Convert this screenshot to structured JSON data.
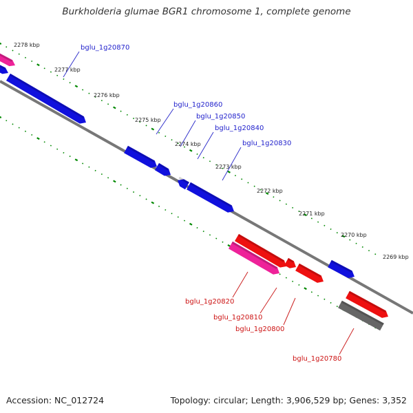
{
  "title": "Burkholderia glumae BGR1 chromosome 1, complete genome",
  "footer": {
    "accession": "Accession: NC_012724",
    "summary": "Topology: circular; Length: 3,906,529 bp; Genes: 3,352"
  },
  "colors": {
    "forward_gene": "#1010dd",
    "reverse_gene": "#ee1010",
    "pink_gene": "#ee2299",
    "pseudo_gene": "#666666",
    "backbone": "#777777",
    "ticks": "#008800"
  },
  "kbp_labels": [
    "2278 kbp",
    "2277 kbp",
    "2276 kbp",
    "2275 kbp",
    "2274 kbp",
    "2273 kbp",
    "2272 kbp",
    "2271 kbp",
    "2270 kbp",
    "2269 kbp"
  ],
  "gene_labels_forward": [
    "bglu_1g20870",
    "bglu_1g20860",
    "bglu_1g20850",
    "bglu_1g20840",
    "bglu_1g20830"
  ],
  "gene_labels_reverse": [
    "bglu_1g20820",
    "bglu_1g20810",
    "bglu_1g20800",
    "bglu_1g20780"
  ]
}
